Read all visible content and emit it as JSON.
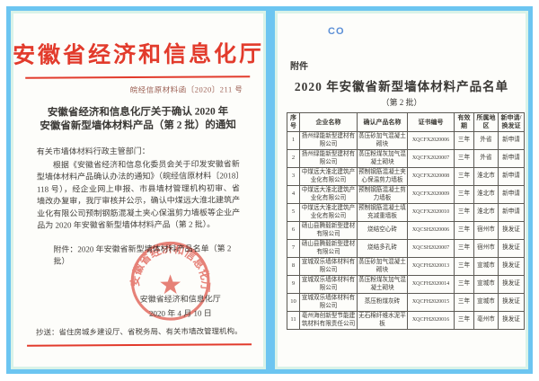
{
  "colors": {
    "frame_blue": "#6cc5f1",
    "accent_red": "#e23b2c",
    "seal_red": "#dd5044",
    "logo_blue": "#5b8fd6"
  },
  "left_page": {
    "agency_title": "安徽省经济和信息化厅",
    "doc_number": "皖经信原材料函〔2020〕211 号",
    "title_line1": "安徽省经济和信息化厅关于确认 2020 年",
    "title_line2": "安徽省新型墙体材料产品（第 2 批）的通知",
    "salutation": "有关市墙体材料行政主管部门：",
    "body_paragraph": "根据《安徽省经济和信息化委员会关于印发安徽省新型墙体材料产品确认办法的通知》（皖经信原材料〔2018〕118 号），经企业网上申报、市县墙材管理机构初审、省墙改办复审，我厅审核并公示，确认中煤远大淮北建筑产业化有限公司预制钢筋混凝土夹心保温剪力墙板等企业产品为 2020 年安徽省新型墙体材料产品（第 2 批）。",
    "attachment_line": "附件：2020 年安徽省新型墙体材料产品名单（第 2 批）",
    "signer": "安徽省经济和信息化厅",
    "date": "2020 年 4 月 10 日",
    "seal_text": "安徽省经济和信息化厅",
    "cc_line": "抄送：省住房城乡建设厅、省税务局、有关市墙改管理机构。"
  },
  "right_page": {
    "logo_text": "CO",
    "attachment_label": "附件",
    "table_title": "2020 年安徽省新型墙体材料产品名单",
    "table_subtitle": "（第 2 批）",
    "table": {
      "columns": [
        "序号",
        "企业名称",
        "确认产品名称",
        "证书编号",
        "有效期",
        "所属地区",
        "新申请/换发证"
      ],
      "rows": [
        [
          "1",
          "扬州绿能新型建材有限公司",
          "蒸压砂加气混凝土砌块",
          "XQCFX2020006",
          "三年",
          "外省",
          "新申请"
        ],
        [
          "2",
          "扬州绿能新型建材有限公司",
          "蒸压粉煤灰加气混凝土砌块",
          "XQCFX2020007",
          "三年",
          "外省",
          "新申请"
        ],
        [
          "3",
          "中煤远大淮北建筑产业化有限公司",
          "预制钢筋混凝土夹心保温剪力墙板",
          "XQCFX2020008",
          "三年",
          "淮北市",
          "新申请"
        ],
        [
          "4",
          "中煤远大淮北建筑产业化有限公司",
          "预制钢筋混凝土剪力墙板",
          "XQCFX2020009",
          "三年",
          "淮北市",
          "新申请"
        ],
        [
          "5",
          "中煤远大淮北建筑产业化有限公司",
          "预制钢筋混凝土填充减重墙板",
          "XQCFX2020010",
          "三年",
          "淮北市",
          "新申请"
        ],
        [
          "6",
          "砀山县腾毅新型建材有限公司",
          "烧结空心砖",
          "XQCSH2020006",
          "三年",
          "宿州市",
          "换发证"
        ],
        [
          "7",
          "砀山县腾毅新型建材有限公司",
          "烧结多孔砖",
          "XQCSH2020007",
          "三年",
          "宿州市",
          "换发证"
        ],
        [
          "8",
          "宣城双乐墙体材料有限公司",
          "蒸压砂加气混凝土砌块",
          "XQCFH2020013",
          "三年",
          "宣城市",
          "换发证"
        ],
        [
          "9",
          "宣城双乐墙体材料有限公司",
          "蒸压粉煤灰加气混凝土砌块",
          "XQCFH2020014",
          "三年",
          "宣城市",
          "换发证"
        ],
        [
          "10",
          "宣城双乐墙体材料有限公司",
          "蒸压粉煤灰砖",
          "XQCFH2020015",
          "三年",
          "宣城市",
          "换发证"
        ],
        [
          "11",
          "亳州海创新型节能建筑材料有限责任公司",
          "无石棉纤维水泥平板",
          "XQCFH2020016",
          "三年",
          "亳州市",
          "换发证"
        ]
      ]
    }
  }
}
